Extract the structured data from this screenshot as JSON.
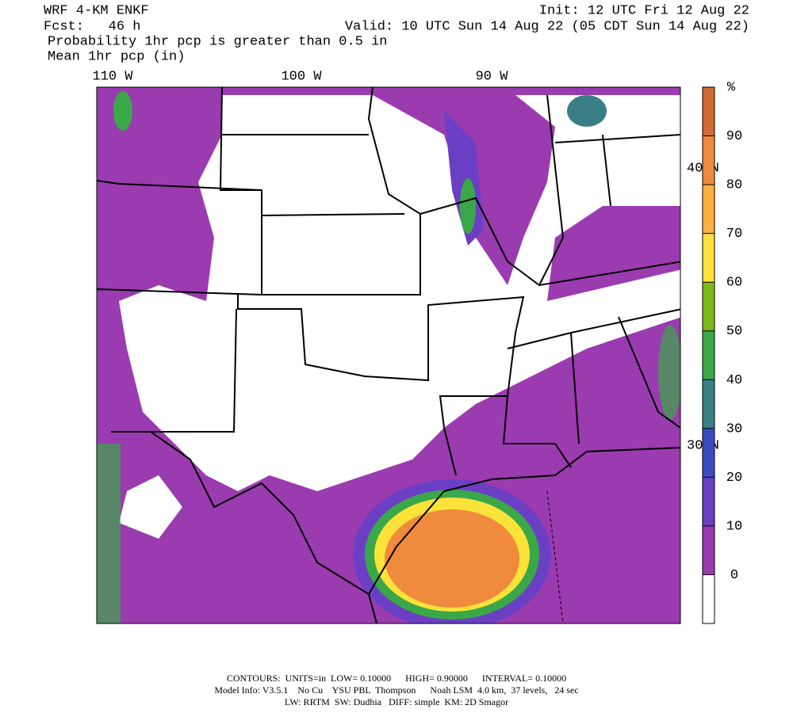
{
  "header": {
    "model": "WRF 4-KM ENKF",
    "forecast": "Fcst:   46 h",
    "init": "Init: 12 UTC Fri 12 Aug 22",
    "valid": "Valid: 10 UTC Sun 14 Aug 22 (05 CDT Sun 14 Aug 22)",
    "field1": "Probability 1hr pcp is greater than 0.5 in",
    "field2": "Mean 1hr pcp (in)"
  },
  "map": {
    "lon_labels": [
      "110 W",
      "100 W",
      "90 W"
    ],
    "lat_labels": [
      "40 N",
      "30 N"
    ]
  },
  "colorbar": {
    "unit": "%",
    "ticks": [
      0,
      10,
      20,
      30,
      40,
      50,
      60,
      70,
      80,
      90
    ],
    "colors": [
      "#ffffff",
      "#9b3bb0",
      "#6b3fc4",
      "#3c4cc0",
      "#3a7f86",
      "#3aa848",
      "#7cb81a",
      "#fde23a",
      "#fdb040",
      "#f08a3c",
      "#d06a34"
    ]
  },
  "footer": {
    "line1": "CONTOURS:  UNITS=in  LOW= 0.10000      HIGH= 0.90000      INTERVAL= 0.10000",
    "line2": "Model Info: V3.5.1    No Cu    YSU PBL  Thompson      Noah LSM  4.0 km,  37 levels,   24 sec",
    "line3": "LW: RRTM  SW: Dudhia   DIFF: simple  KM: 2D Smagor"
  }
}
